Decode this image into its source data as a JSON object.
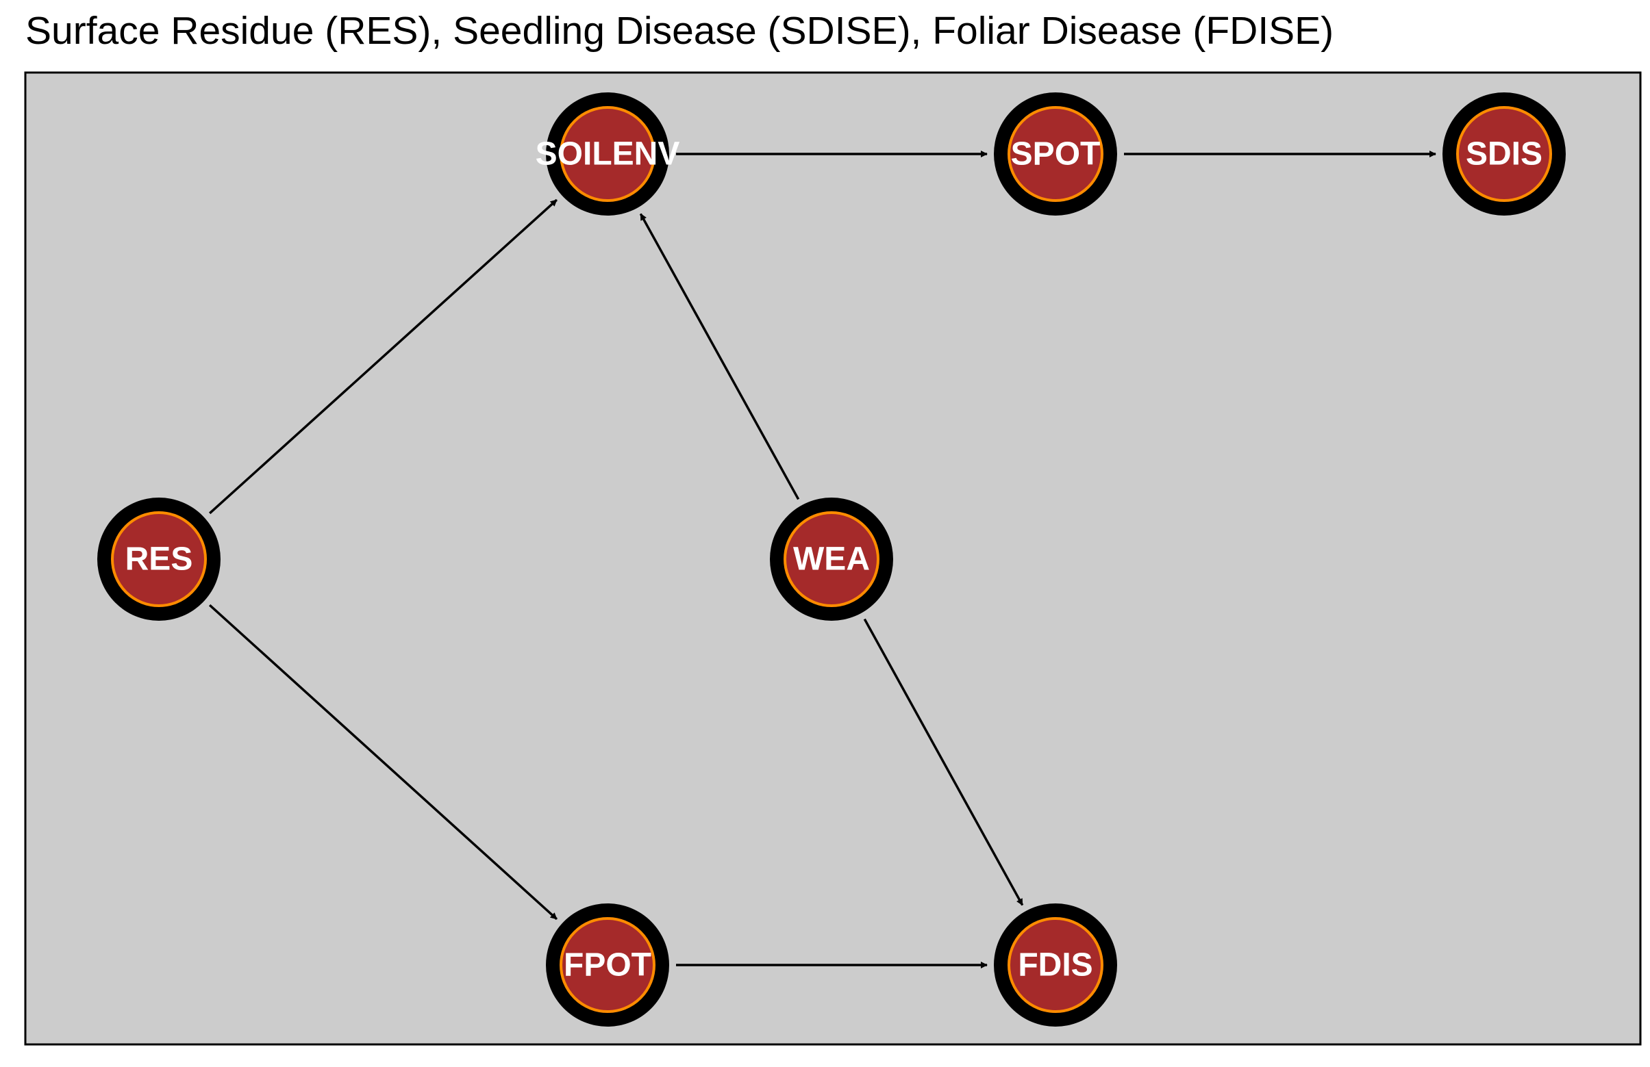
{
  "title": "Surface Residue (RES), Seedling Disease (SDISE), Foliar Disease (FDISE)",
  "colors": {
    "panel_background": "#cccccc",
    "panel_border": "#000000",
    "node_outer": "#000000",
    "node_fill": "#a52a2a",
    "node_ring": "#ff8c00",
    "label": "#ffffff",
    "edge": "#000000"
  },
  "nodes": [
    {
      "id": "SOILENV",
      "label": "SOILENV"
    },
    {
      "id": "SPOT",
      "label": "SPOT"
    },
    {
      "id": "SDIS",
      "label": "SDIS"
    },
    {
      "id": "RES",
      "label": "RES"
    },
    {
      "id": "WEA",
      "label": "WEA"
    },
    {
      "id": "FPOT",
      "label": "FPOT"
    },
    {
      "id": "FDIS",
      "label": "FDIS"
    }
  ],
  "edges": [
    {
      "from": "RES",
      "to": "SOILENV"
    },
    {
      "from": "RES",
      "to": "FPOT"
    },
    {
      "from": "WEA",
      "to": "SOILENV"
    },
    {
      "from": "WEA",
      "to": "FDIS"
    },
    {
      "from": "SOILENV",
      "to": "SPOT"
    },
    {
      "from": "SPOT",
      "to": "SDIS"
    },
    {
      "from": "FPOT",
      "to": "FDIS"
    }
  ]
}
